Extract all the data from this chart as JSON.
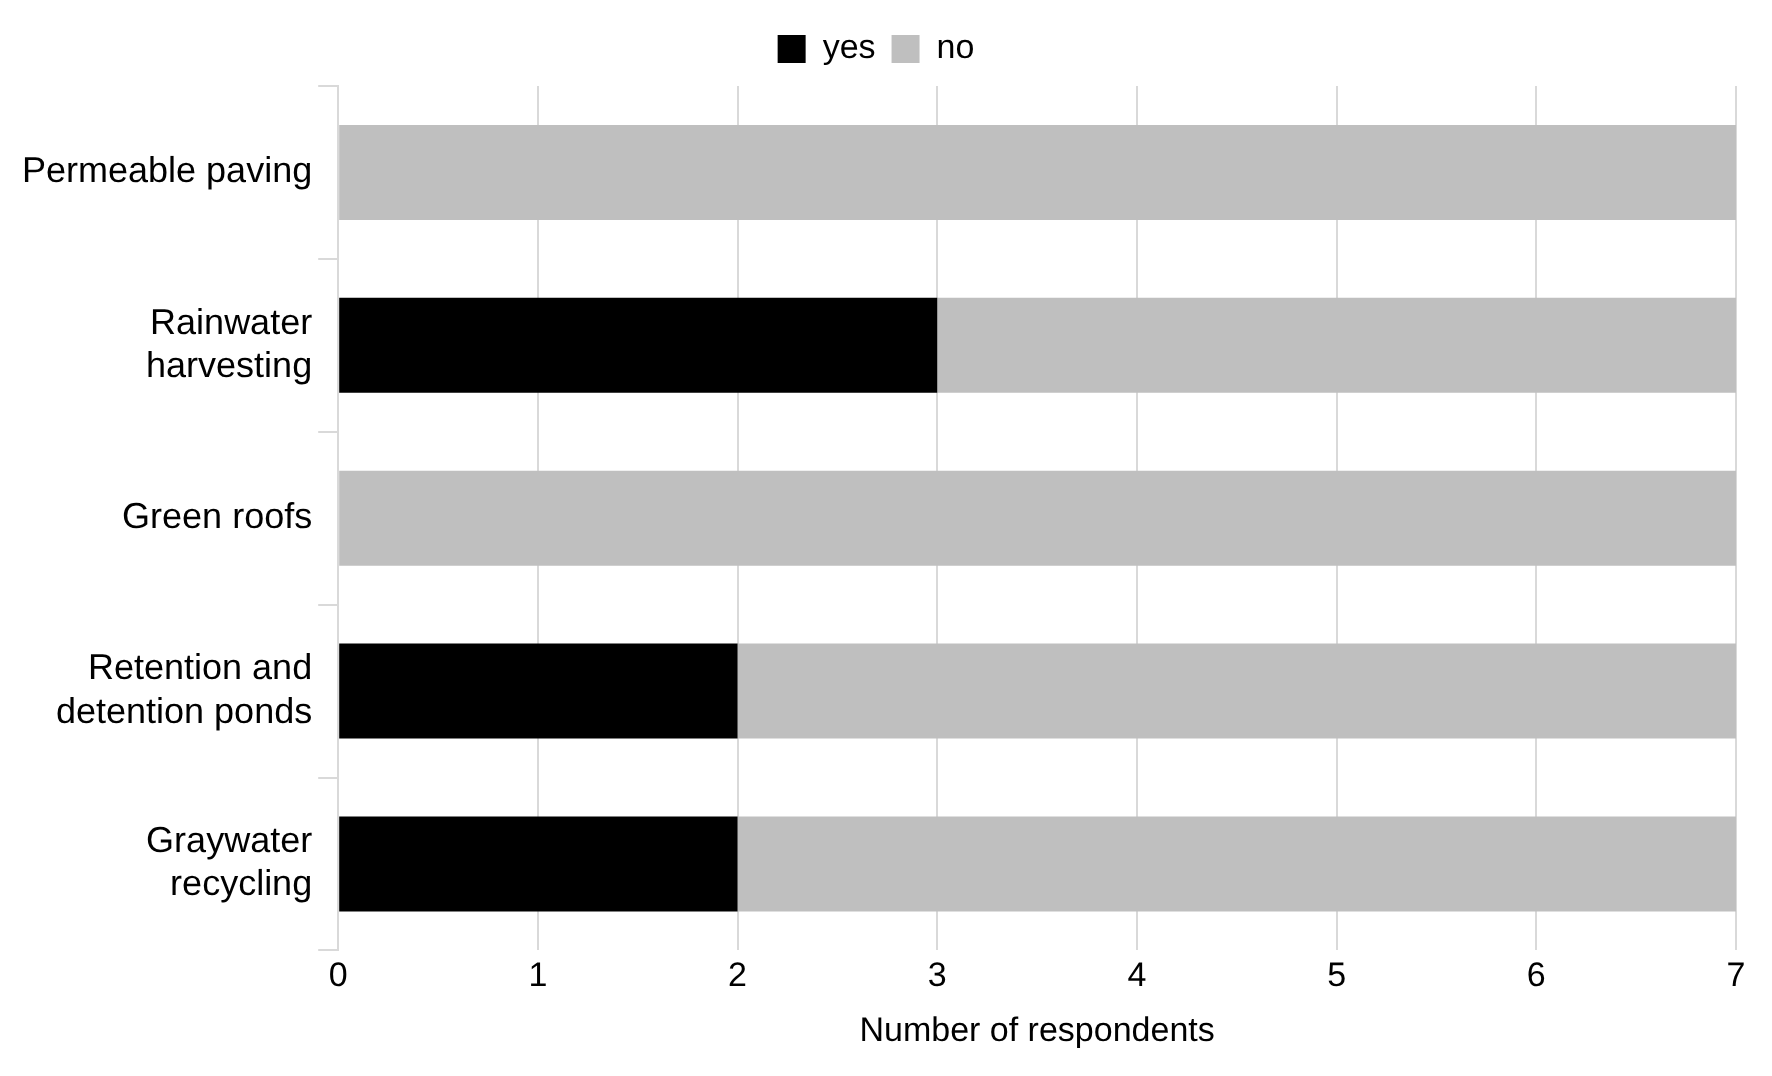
{
  "chart_data": {
    "type": "bar",
    "orientation": "horizontal",
    "stacked": true,
    "xlabel": "Number of respondents",
    "categories": [
      "Permeable paving",
      "Rainwater harvesting",
      "Green roofs",
      "Retention and detention ponds",
      "Graywater recycling"
    ],
    "series": [
      {
        "name": "yes",
        "color": "#000000",
        "values": [
          0,
          3,
          0,
          2,
          2
        ]
      },
      {
        "name": "no",
        "color": "#bfbfbf",
        "values": [
          7,
          4,
          7,
          5,
          5
        ]
      }
    ],
    "xlim": [
      0,
      7
    ],
    "xticks": [
      0,
      1,
      2,
      3,
      4,
      5,
      6,
      7
    ],
    "grid": "x",
    "legend": "top"
  }
}
